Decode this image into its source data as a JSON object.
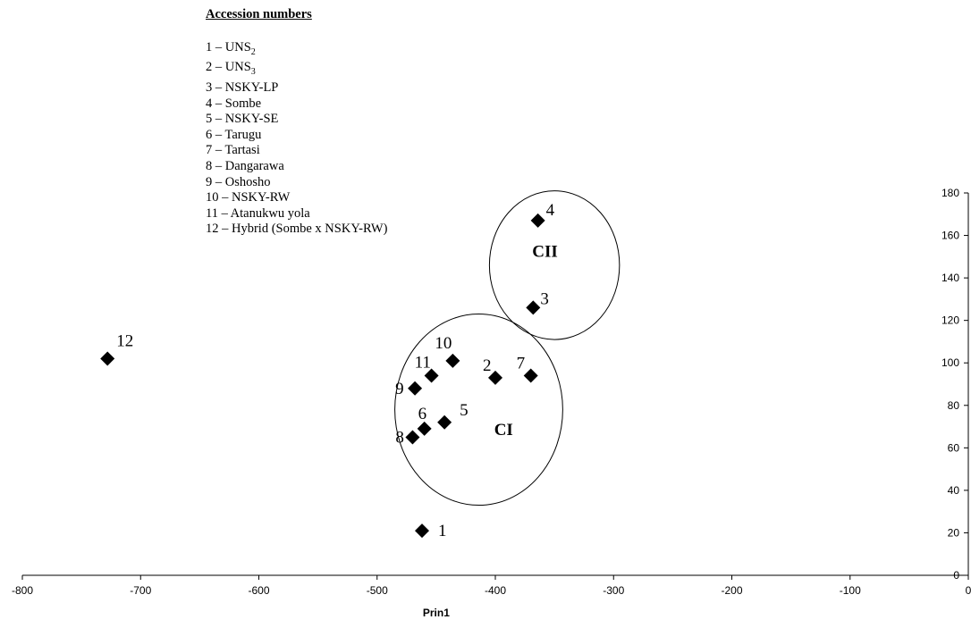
{
  "legend": {
    "title": "Accession numbers",
    "items": [
      {
        "prefix": "1 – UNS",
        "sub": "2"
      },
      {
        "prefix": "2 – UNS",
        "sub": "3"
      },
      {
        "prefix": "3 – NSKY-LP"
      },
      {
        "prefix": "4 – Sombe"
      },
      {
        "prefix": "5 – NSKY-SE"
      },
      {
        "prefix": "6 – Tarugu"
      },
      {
        "prefix": "7 – Tartasi"
      },
      {
        "prefix": "8 – Dangarawa"
      },
      {
        "prefix": "9 – Oshosho"
      },
      {
        "prefix": "10 – NSKY-RW"
      },
      {
        "prefix": "11 – Atanukwu yola"
      },
      {
        "prefix": "12 – Hybrid (Sombe x NSKY-RW)"
      }
    ]
  },
  "chart_data": {
    "type": "scatter",
    "xlabel": "Prin1",
    "ylabel": "",
    "xlim": [
      -800,
      0
    ],
    "ylim": [
      0,
      180
    ],
    "x_ticks": [
      -800,
      -700,
      -600,
      -500,
      -400,
      -300,
      -200,
      -100,
      0
    ],
    "y_ticks": [
      0,
      20,
      40,
      60,
      80,
      100,
      120,
      140,
      160,
      180
    ],
    "y_axis_position": "right",
    "grid": false,
    "marker": "diamond",
    "marker_color": "#000000",
    "points": [
      {
        "label": "1",
        "x": -462,
        "y": 21
      },
      {
        "label": "2",
        "x": -400,
        "y": 93
      },
      {
        "label": "3",
        "x": -368,
        "y": 126
      },
      {
        "label": "4",
        "x": -364,
        "y": 167
      },
      {
        "label": "5",
        "x": -443,
        "y": 72
      },
      {
        "label": "6",
        "x": -460,
        "y": 69
      },
      {
        "label": "7",
        "x": -370,
        "y": 94
      },
      {
        "label": "8",
        "x": -470,
        "y": 65
      },
      {
        "label": "9",
        "x": -468,
        "y": 88
      },
      {
        "label": "10",
        "x": -436,
        "y": 101
      },
      {
        "label": "11",
        "x": -454,
        "y": 94
      },
      {
        "label": "12",
        "x": -728,
        "y": 102
      }
    ],
    "clusters": [
      {
        "label": "CI",
        "center_x": -414,
        "center_y": 78,
        "radius_x": 71,
        "radius_y": 45
      },
      {
        "label": "CII",
        "center_x": -350,
        "center_y": 146,
        "radius_x": 55,
        "radius_y": 35
      }
    ]
  }
}
